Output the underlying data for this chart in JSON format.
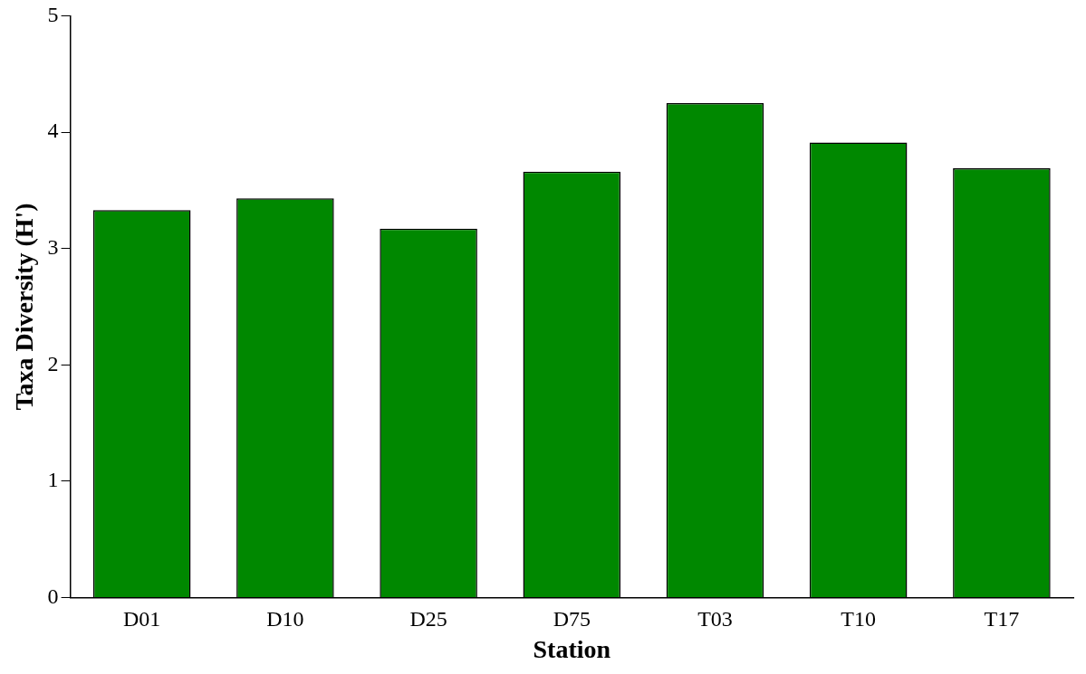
{
  "chart_data": {
    "type": "bar",
    "xlabel": "Station",
    "ylabel": "Taxa Diversity (H')",
    "categories": [
      "D01",
      "D10",
      "D25",
      "D75",
      "T03",
      "T10",
      "T17"
    ],
    "values": [
      3.33,
      3.43,
      3.17,
      3.66,
      4.25,
      3.91,
      3.69
    ],
    "color": "#008800",
    "ylim": [
      0,
      5
    ],
    "yticks": [
      0,
      1,
      2,
      3,
      4,
      5
    ],
    "grid": false,
    "legend": false
  }
}
